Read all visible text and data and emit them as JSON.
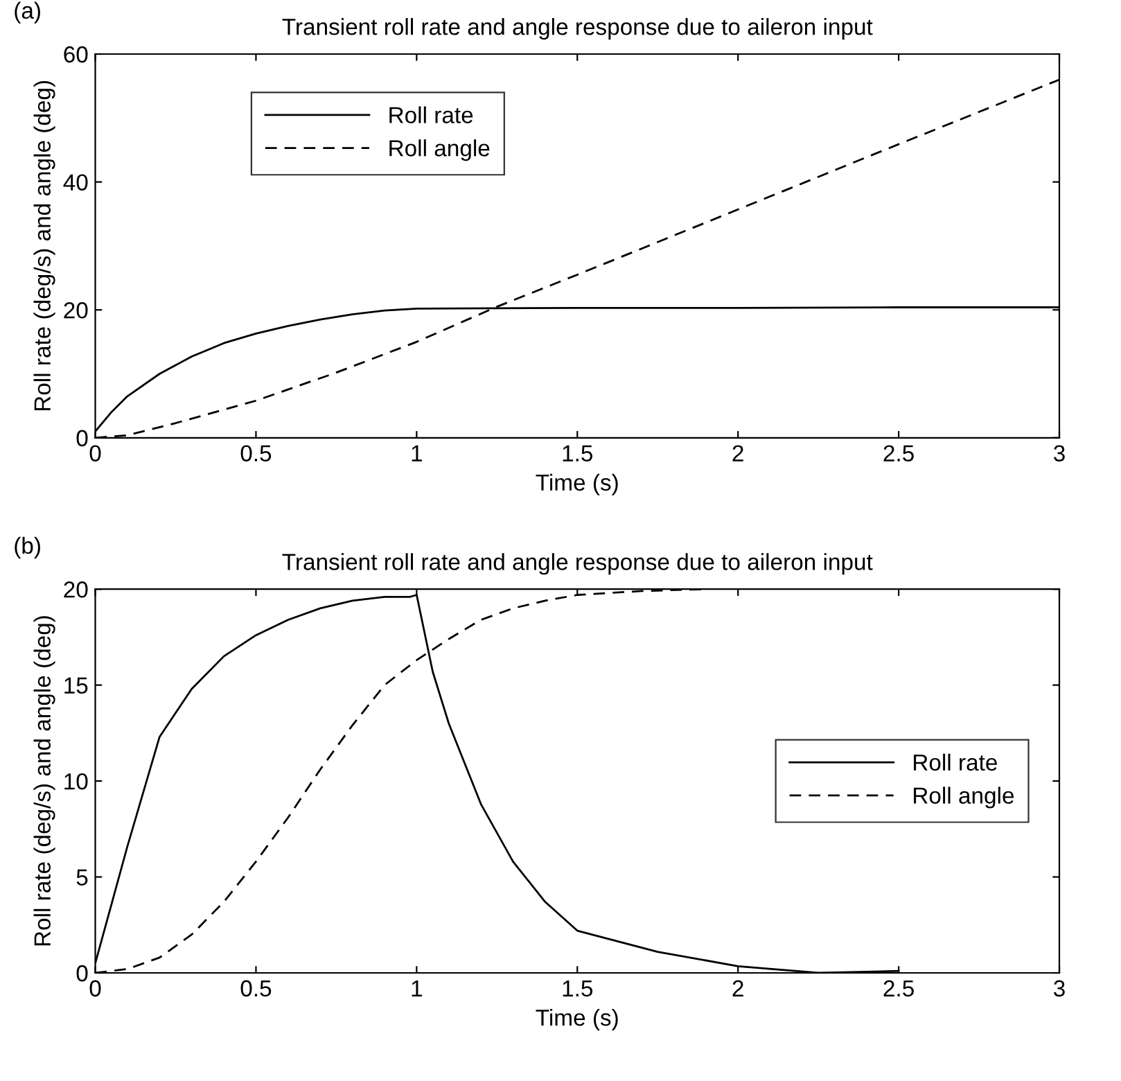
{
  "chart_data": [
    {
      "type": "line",
      "title": "Transient roll rate and angle response due to aileron input",
      "xlabel": "Time (s)",
      "ylabel": "Roll rate (deg/s) and angle (deg)",
      "annotations": [
        "(a)"
      ],
      "legend": "top left",
      "grid": false,
      "xlim": [
        0,
        3
      ],
      "ylim": [
        0,
        60
      ],
      "xticks": [
        0,
        0.5,
        1,
        1.5,
        2,
        2.5,
        3
      ],
      "yticks": [
        0,
        20,
        40,
        60
      ],
      "series": [
        {
          "name": "Roll rate",
          "color": "#000000",
          "line_style": "solid",
          "x": [
            0,
            0.05,
            0.1,
            0.2,
            0.3,
            0.4,
            0.5,
            0.6,
            0.7,
            0.8,
            0.9,
            1.0,
            1.5,
            2,
            2.5,
            3
          ],
          "values": [
            1,
            4,
            6.5,
            10,
            12.7,
            14.8,
            16.3,
            17.5,
            18.5,
            19.3,
            19.9,
            20.2,
            20.3,
            20.3,
            20.4,
            20.4
          ]
        },
        {
          "name": "Roll angle",
          "color": "#000000",
          "line_style": "dashed",
          "x": [
            0,
            0.1,
            0.25,
            0.5,
            0.75,
            1,
            1.25,
            1.5,
            2,
            2.5,
            3
          ],
          "values": [
            0,
            0.4,
            2.3,
            5.8,
            10.2,
            15,
            20.5,
            25.5,
            35.7,
            45.9,
            56
          ]
        }
      ]
    },
    {
      "type": "line",
      "title": "Transient roll rate and angle response due to aileron input",
      "xlabel": "Time (s)",
      "ylabel": "Roll rate (deg/s) and angle (deg)",
      "annotations": [
        "(b)"
      ],
      "legend": "right",
      "grid": false,
      "xlim": [
        0,
        3
      ],
      "ylim": [
        0,
        20
      ],
      "xticks": [
        0,
        0.5,
        1,
        1.5,
        2,
        2.5,
        3
      ],
      "yticks": [
        0,
        5,
        10,
        15,
        20
      ],
      "series": [
        {
          "name": "Roll rate",
          "color": "#000000",
          "line_style": "solid",
          "x": [
            0,
            0.1,
            0.2,
            0.3,
            0.4,
            0.5,
            0.6,
            0.7,
            0.8,
            0.9,
            0.98,
            1.0,
            1.05,
            1.1,
            1.2,
            1.3,
            1.4,
            1.5,
            1.75,
            2,
            2.25,
            2.5
          ],
          "values": [
            0.5,
            6.6,
            12.3,
            14.8,
            16.5,
            17.6,
            18.4,
            19.0,
            19.4,
            19.6,
            19.6,
            19.7,
            15.7,
            13.0,
            8.8,
            5.8,
            3.7,
            2.2,
            1.1,
            0.35,
            0,
            0.1
          ]
        },
        {
          "name": "Roll angle",
          "color": "#000000",
          "line_style": "dashed",
          "x": [
            0,
            0.1,
            0.2,
            0.3,
            0.4,
            0.5,
            0.6,
            0.7,
            0.8,
            0.9,
            1.0,
            1.1,
            1.2,
            1.3,
            1.4,
            1.5,
            1.7,
            1.9
          ],
          "values": [
            0,
            0.2,
            0.8,
            2.0,
            3.7,
            5.8,
            8.1,
            10.6,
            12.9,
            15.0,
            16.3,
            17.4,
            18.4,
            19.0,
            19.4,
            19.7,
            19.9,
            20
          ]
        }
      ]
    }
  ]
}
